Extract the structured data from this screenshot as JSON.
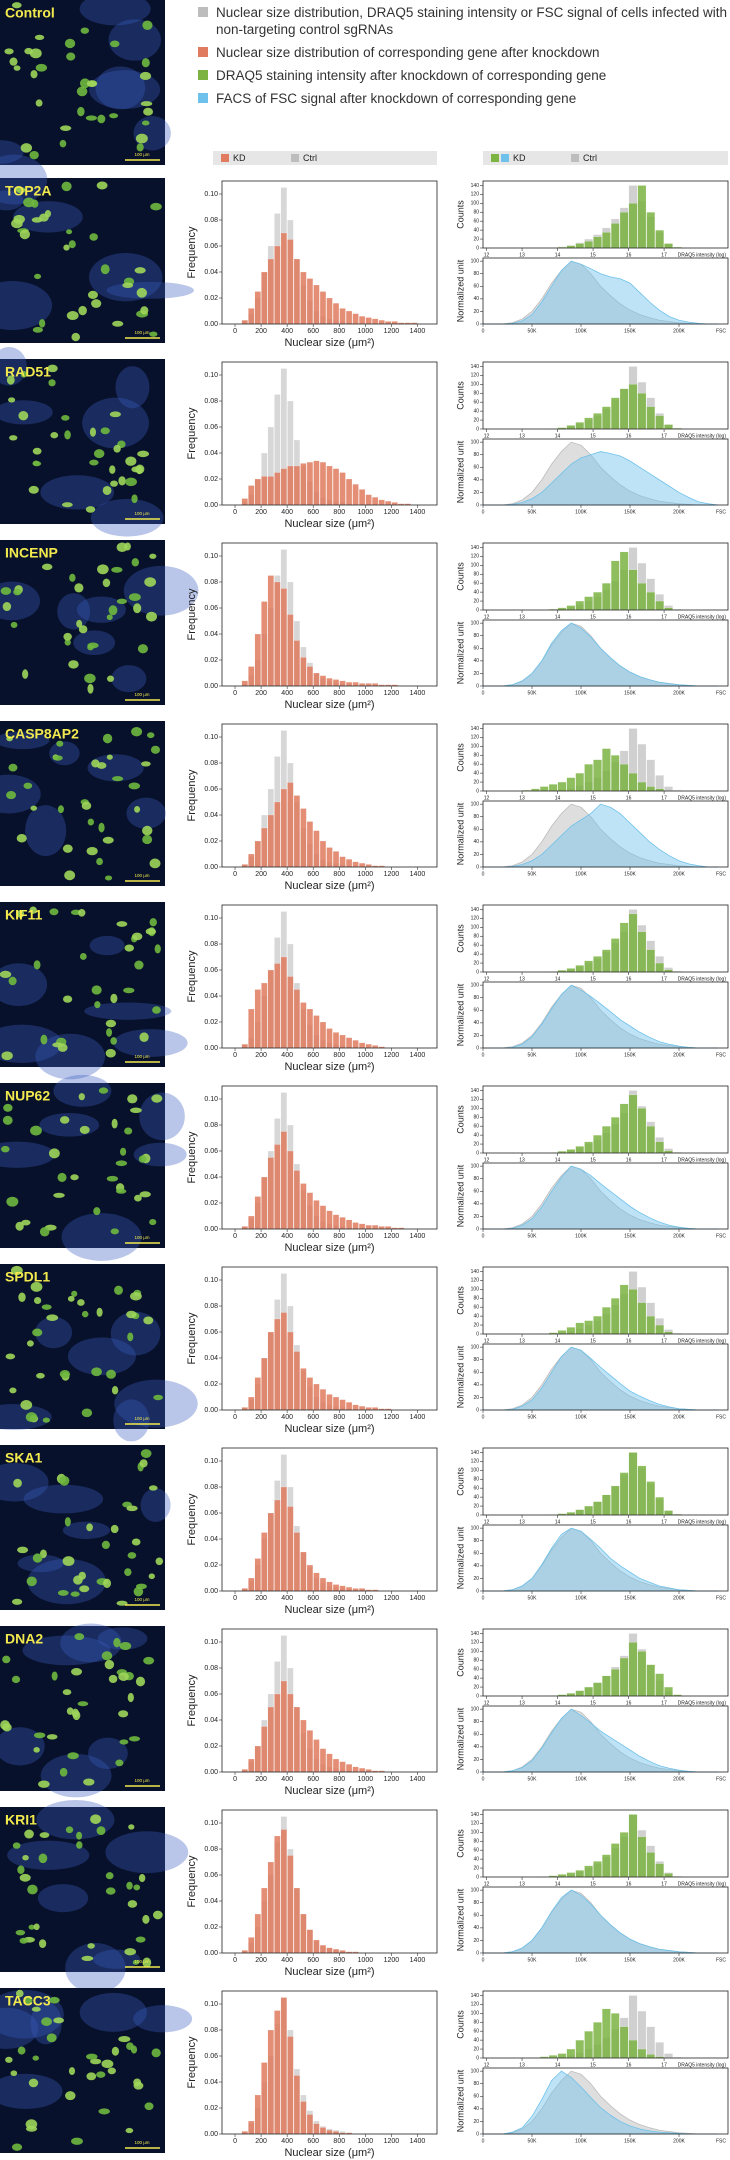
{
  "legend": [
    {
      "label": "Nuclear size distribution, DRAQ5 staining intensity or FSC signal of cells infected with non-targeting control sgRNAs",
      "color": "#bdbdbd"
    },
    {
      "label": "Nuclear size distribution of corresponding gene after knockdown",
      "color": "#e07b5f"
    },
    {
      "label": "DRAQ5 staining intensity after knockdown of corresponding gene",
      "color": "#7cb342"
    },
    {
      "label": "FACS of FSC signal after knockdown of corresponding gene",
      "color": "#6ec1ea"
    }
  ],
  "headers": {
    "nuclear": {
      "kd": "KD",
      "ctrl": "Ctrl"
    },
    "facs": {
      "kd": "KD",
      "ctrl": "Ctrl"
    }
  },
  "control_label": "Control",
  "scale_bar": "100 μm",
  "chart_data": {
    "type": "histogram-grid",
    "colors": {
      "nuclear_kd": "#e07b5f",
      "ctrl": "#bdbdbd",
      "draq5_kd": "#7cb342",
      "fsc_kd": "#6ec1ea"
    },
    "nuclear": {
      "xlabel": "Nuclear size (μm²)",
      "ylabel": "Frequency",
      "xlim": [
        -100,
        1550
      ],
      "xticks": [
        0,
        200,
        400,
        600,
        800,
        1000,
        1200,
        1400
      ],
      "ylim": [
        0,
        0.11
      ],
      "yticks": [
        {
          "value": 0,
          "label": "0.00"
        },
        {
          "value": 0.02,
          "label": "0.02"
        },
        {
          "value": 0.04,
          "label": "0.04"
        },
        {
          "value": 0.06,
          "label": "0.06"
        },
        {
          "value": 0.08,
          "label": "0.08"
        },
        {
          "value": 0.1,
          "label": "0.10"
        }
      ],
      "bins": [
        50,
        100,
        150,
        200,
        250,
        300,
        350,
        400,
        450,
        500,
        550,
        600,
        650,
        700,
        750,
        800,
        850,
        900,
        950,
        1000,
        1050,
        1100,
        1150,
        1200,
        1250,
        1300,
        1350,
        1400,
        1450
      ]
    },
    "draq5": {
      "xlabel": "DRAQ5 intensity (log)",
      "ylabel": "Counts",
      "xlim": [
        11.9,
        18.8
      ],
      "xticks": [
        12,
        13,
        14,
        15,
        16,
        17
      ],
      "ylim": [
        0,
        150
      ],
      "yticks": [
        0,
        20,
        40,
        60,
        80,
        100,
        120,
        140
      ],
      "bins": [
        12,
        12.25,
        12.5,
        12.75,
        13,
        13.25,
        13.5,
        13.75,
        14,
        14.25,
        14.5,
        14.75,
        15,
        15.25,
        15.5,
        15.75,
        16,
        16.25,
        16.5,
        16.75,
        17,
        17.25,
        17.5
      ]
    },
    "fsc": {
      "xlabel": "FSC",
      "ylabel": "Normalized unit",
      "xlim": [
        0,
        250000
      ],
      "xticks": [
        0,
        {
          "value": 50000,
          "label": "50K"
        },
        {
          "value": 100000,
          "label": "100K"
        },
        {
          "value": 150000,
          "label": "150K"
        },
        {
          "value": 200000,
          "label": "200K"
        }
      ],
      "ylim": [
        0,
        105
      ],
      "yticks": [
        0,
        20,
        40,
        60,
        80,
        100
      ],
      "x": [
        0,
        10000,
        20000,
        30000,
        40000,
        50000,
        60000,
        70000,
        80000,
        90000,
        100000,
        110000,
        120000,
        130000,
        140000,
        150000,
        160000,
        170000,
        180000,
        190000,
        200000,
        210000,
        220000,
        230000,
        240000
      ]
    },
    "control": {
      "nuclear": [
        0.002,
        0.008,
        0.02,
        0.04,
        0.06,
        0.085,
        0.105,
        0.08,
        0.05,
        0.03,
        0.018,
        0.01,
        0.006,
        0.004,
        0.003,
        0.002,
        0.001,
        0,
        0,
        0,
        0,
        0,
        0,
        0,
        0,
        0,
        0,
        0
      ],
      "draq5": [
        0,
        0,
        0,
        0,
        0,
        0,
        0,
        0,
        3,
        6,
        12,
        20,
        30,
        45,
        65,
        90,
        140,
        105,
        70,
        35,
        10,
        2
      ],
      "fsc": [
        0,
        0,
        0,
        2,
        8,
        20,
        40,
        65,
        85,
        100,
        95,
        80,
        60,
        45,
        32,
        22,
        15,
        10,
        6,
        4,
        2,
        1,
        0,
        0,
        0
      ]
    },
    "panels": [
      {
        "gene": "TOP2A",
        "nuclear": [
          0.003,
          0.012,
          0.025,
          0.04,
          0.05,
          0.06,
          0.07,
          0.065,
          0.05,
          0.04,
          0.035,
          0.03,
          0.025,
          0.02,
          0.016,
          0.012,
          0.01,
          0.008,
          0.006,
          0.005,
          0.004,
          0.003,
          0.002,
          0.002,
          0.001,
          0.001,
          0.001,
          0
        ],
        "draq5": [
          0,
          0,
          0,
          0,
          0,
          0,
          0,
          0,
          2,
          5,
          10,
          15,
          25,
          35,
          55,
          80,
          100,
          140,
          80,
          40,
          10,
          2
        ],
        "fsc": [
          0,
          0,
          0,
          1,
          5,
          15,
          35,
          60,
          85,
          100,
          95,
          88,
          80,
          75,
          72,
          65,
          50,
          35,
          22,
          12,
          6,
          3,
          1,
          0,
          0
        ]
      },
      {
        "gene": "RAD51",
        "nuclear": [
          0.005,
          0.015,
          0.02,
          0.022,
          0.022,
          0.025,
          0.028,
          0.03,
          0.03,
          0.032,
          0.033,
          0.034,
          0.033,
          0.03,
          0.028,
          0.025,
          0.02,
          0.016,
          0.012,
          0.008,
          0.006,
          0.004,
          0.003,
          0.002,
          0.001,
          0.001,
          0,
          0
        ],
        "draq5": [
          0,
          0,
          0,
          0,
          0,
          0,
          0,
          1,
          3,
          8,
          15,
          25,
          35,
          50,
          70,
          90,
          100,
          80,
          50,
          30,
          10,
          2
        ],
        "fsc": [
          0,
          0,
          0,
          1,
          4,
          10,
          20,
          35,
          50,
          65,
          75,
          80,
          85,
          82,
          78,
          70,
          60,
          50,
          40,
          30,
          20,
          12,
          5,
          2,
          0
        ]
      },
      {
        "gene": "INCENP",
        "nuclear": [
          0.004,
          0.015,
          0.04,
          0.065,
          0.085,
          0.08,
          0.075,
          0.055,
          0.035,
          0.022,
          0.015,
          0.01,
          0.008,
          0.006,
          0.005,
          0.004,
          0.003,
          0.003,
          0.002,
          0.002,
          0.002,
          0.001,
          0.001,
          0.001,
          0,
          0,
          0,
          0
        ],
        "draq5": [
          0,
          0,
          0,
          0,
          0,
          0,
          0,
          2,
          5,
          10,
          20,
          30,
          40,
          60,
          110,
          130,
          90,
          60,
          40,
          20,
          5,
          1
        ],
        "fsc": [
          0,
          0,
          0,
          2,
          8,
          20,
          40,
          68,
          88,
          100,
          92,
          78,
          60,
          45,
          32,
          22,
          15,
          10,
          6,
          4,
          2,
          1,
          0,
          0,
          0
        ]
      },
      {
        "gene": "CASP8AP2",
        "nuclear": [
          0.002,
          0.01,
          0.02,
          0.03,
          0.04,
          0.05,
          0.06,
          0.065,
          0.055,
          0.045,
          0.035,
          0.028,
          0.02,
          0.015,
          0.012,
          0.008,
          0.006,
          0.004,
          0.003,
          0.002,
          0.001,
          0.001,
          0,
          0,
          0,
          0,
          0,
          0
        ],
        "draq5": [
          0,
          0,
          0,
          0,
          2,
          5,
          10,
          15,
          20,
          30,
          40,
          60,
          70,
          95,
          80,
          60,
          40,
          20,
          10,
          5,
          1,
          0
        ],
        "fsc": [
          0,
          0,
          0,
          1,
          4,
          10,
          20,
          35,
          50,
          65,
          75,
          85,
          100,
          95,
          85,
          70,
          55,
          40,
          28,
          18,
          10,
          5,
          2,
          0,
          0
        ]
      },
      {
        "gene": "KIF11",
        "nuclear": [
          0.003,
          0.03,
          0.045,
          0.05,
          0.06,
          0.065,
          0.07,
          0.055,
          0.045,
          0.035,
          0.03,
          0.025,
          0.02,
          0.015,
          0.012,
          0.01,
          0.008,
          0.006,
          0.004,
          0.003,
          0.002,
          0.001,
          0,
          0,
          0,
          0,
          0,
          0
        ],
        "draq5": [
          0,
          0,
          0,
          0,
          0,
          0,
          0,
          1,
          4,
          8,
          15,
          25,
          35,
          50,
          75,
          110,
          130,
          90,
          50,
          20,
          5,
          1
        ],
        "fsc": [
          0,
          0,
          0,
          1,
          6,
          18,
          38,
          62,
          85,
          100,
          92,
          82,
          70,
          58,
          45,
          35,
          25,
          17,
          10,
          6,
          3,
          1,
          0,
          0,
          0
        ]
      },
      {
        "gene": "NUP62",
        "nuclear": [
          0.002,
          0.01,
          0.025,
          0.04,
          0.055,
          0.065,
          0.075,
          0.06,
          0.045,
          0.035,
          0.028,
          0.022,
          0.018,
          0.014,
          0.011,
          0.009,
          0.007,
          0.005,
          0.004,
          0.003,
          0.003,
          0.002,
          0.002,
          0.001,
          0.001,
          0,
          0,
          0
        ],
        "draq5": [
          0,
          0,
          0,
          0,
          0,
          0,
          0,
          1,
          4,
          8,
          15,
          25,
          40,
          60,
          80,
          110,
          130,
          100,
          60,
          25,
          5,
          1
        ],
        "fsc": [
          0,
          0,
          0,
          1,
          6,
          16,
          35,
          60,
          82,
          100,
          95,
          85,
          72,
          60,
          48,
          36,
          26,
          18,
          11,
          6,
          3,
          1,
          0,
          0,
          0
        ]
      },
      {
        "gene": "SPDL1",
        "nuclear": [
          0.002,
          0.01,
          0.025,
          0.04,
          0.06,
          0.07,
          0.075,
          0.06,
          0.045,
          0.032,
          0.025,
          0.02,
          0.016,
          0.012,
          0.01,
          0.008,
          0.006,
          0.004,
          0.003,
          0.002,
          0.002,
          0.001,
          0.001,
          0,
          0,
          0,
          0,
          0
        ],
        "draq5": [
          0,
          0,
          0,
          0,
          0,
          0,
          1,
          3,
          8,
          15,
          25,
          30,
          40,
          60,
          80,
          110,
          100,
          70,
          40,
          20,
          5,
          1
        ],
        "fsc": [
          0,
          0,
          0,
          1,
          6,
          16,
          35,
          60,
          85,
          100,
          95,
          82,
          68,
          55,
          42,
          30,
          22,
          15,
          9,
          5,
          2,
          1,
          0,
          0,
          0
        ]
      },
      {
        "gene": "SKA1",
        "nuclear": [
          0.002,
          0.01,
          0.025,
          0.045,
          0.06,
          0.07,
          0.08,
          0.065,
          0.045,
          0.03,
          0.02,
          0.014,
          0.01,
          0.007,
          0.005,
          0.004,
          0.003,
          0.002,
          0.002,
          0.001,
          0.001,
          0,
          0,
          0,
          0,
          0,
          0,
          0
        ],
        "draq5": [
          0,
          0,
          0,
          0,
          0,
          0,
          0,
          1,
          3,
          6,
          12,
          20,
          30,
          45,
          65,
          95,
          140,
          110,
          75,
          40,
          10,
          2
        ],
        "fsc": [
          0,
          0,
          0,
          2,
          8,
          20,
          42,
          68,
          90,
          100,
          95,
          82,
          68,
          52,
          40,
          30,
          20,
          14,
          8,
          5,
          2,
          1,
          0,
          0,
          0
        ]
      },
      {
        "gene": "DNA2",
        "nuclear": [
          0.002,
          0.01,
          0.02,
          0.035,
          0.05,
          0.06,
          0.07,
          0.06,
          0.05,
          0.04,
          0.032,
          0.025,
          0.018,
          0.014,
          0.01,
          0.008,
          0.006,
          0.004,
          0.003,
          0.002,
          0.001,
          0.001,
          0,
          0,
          0,
          0,
          0,
          0
        ],
        "draq5": [
          0,
          0,
          0,
          0,
          0,
          0,
          0,
          1,
          3,
          6,
          12,
          20,
          30,
          45,
          60,
          85,
          120,
          100,
          70,
          50,
          20,
          3
        ],
        "fsc": [
          0,
          0,
          0,
          2,
          7,
          18,
          38,
          62,
          85,
          100,
          90,
          78,
          65,
          55,
          45,
          35,
          25,
          17,
          10,
          6,
          3,
          1,
          0,
          0,
          0
        ]
      },
      {
        "gene": "KRI1",
        "nuclear": [
          0.002,
          0.012,
          0.03,
          0.05,
          0.07,
          0.09,
          0.095,
          0.075,
          0.05,
          0.03,
          0.018,
          0.01,
          0.006,
          0.004,
          0.003,
          0.002,
          0.001,
          0.001,
          0,
          0,
          0,
          0,
          0,
          0,
          0,
          0,
          0,
          0
        ],
        "draq5": [
          0,
          0,
          0,
          0,
          0,
          0,
          1,
          3,
          6,
          10,
          15,
          25,
          35,
          50,
          75,
          100,
          140,
          90,
          55,
          30,
          8,
          1
        ],
        "fsc": [
          0,
          0,
          0,
          2,
          8,
          20,
          40,
          66,
          88,
          100,
          92,
          78,
          60,
          45,
          32,
          22,
          15,
          10,
          6,
          4,
          2,
          1,
          0,
          0,
          0
        ]
      },
      {
        "gene": "TACC3",
        "nuclear": [
          0.002,
          0.01,
          0.03,
          0.055,
          0.08,
          0.095,
          0.105,
          0.075,
          0.045,
          0.025,
          0.015,
          0.008,
          0.005,
          0.003,
          0.002,
          0.001,
          0.001,
          0,
          0,
          0,
          0,
          0,
          0,
          0,
          0,
          0,
          0,
          0
        ],
        "draq5": [
          0,
          0,
          0,
          0,
          0,
          1,
          3,
          6,
          10,
          20,
          40,
          60,
          80,
          110,
          100,
          70,
          40,
          20,
          8,
          3,
          1,
          0
        ],
        "fsc": [
          0,
          0,
          0,
          3,
          10,
          28,
          55,
          85,
          100,
          90,
          75,
          58,
          42,
          30,
          20,
          13,
          8,
          5,
          3,
          2,
          1,
          0,
          0,
          0,
          0
        ]
      }
    ]
  }
}
